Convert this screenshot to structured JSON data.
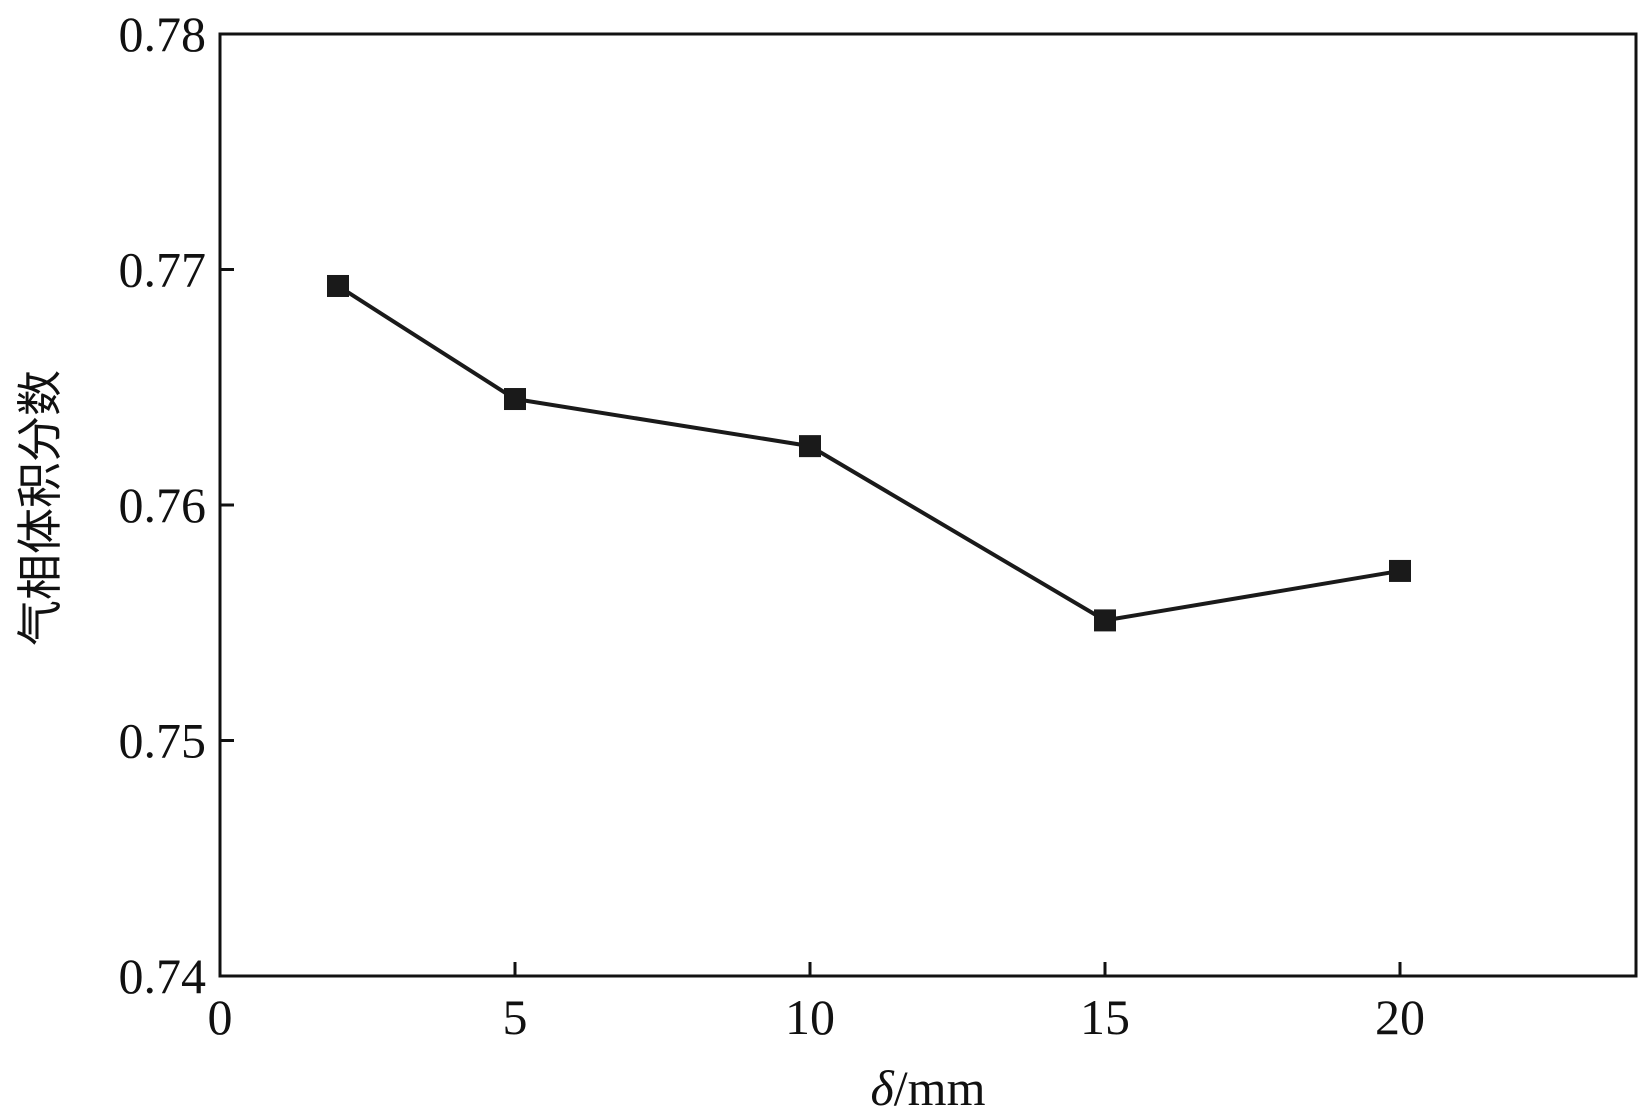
{
  "chart_data": {
    "type": "line",
    "title": "",
    "xlabel": "δ/mm",
    "xlabel_parts": {
      "symbol": "δ",
      "unit": "/mm"
    },
    "ylabel": "气相体积分数",
    "xlim": [
      0,
      24
    ],
    "ylim": [
      0.74,
      0.78
    ],
    "xticks": [
      0,
      5,
      10,
      15,
      20
    ],
    "xtick_labels": [
      "0",
      "5",
      "10",
      "15",
      "20"
    ],
    "yticks": [
      0.74,
      0.75,
      0.76,
      0.77,
      0.78
    ],
    "ytick_labels": [
      "0.74",
      "0.75",
      "0.76",
      "0.77",
      "0.78"
    ],
    "grid": false,
    "legend": "none",
    "series": [
      {
        "marker": "square",
        "color": "#1a1a1a",
        "x": [
          2,
          5,
          10,
          15,
          20
        ],
        "y": [
          0.7693,
          0.7645,
          0.7625,
          0.7551,
          0.7572
        ]
      }
    ]
  }
}
